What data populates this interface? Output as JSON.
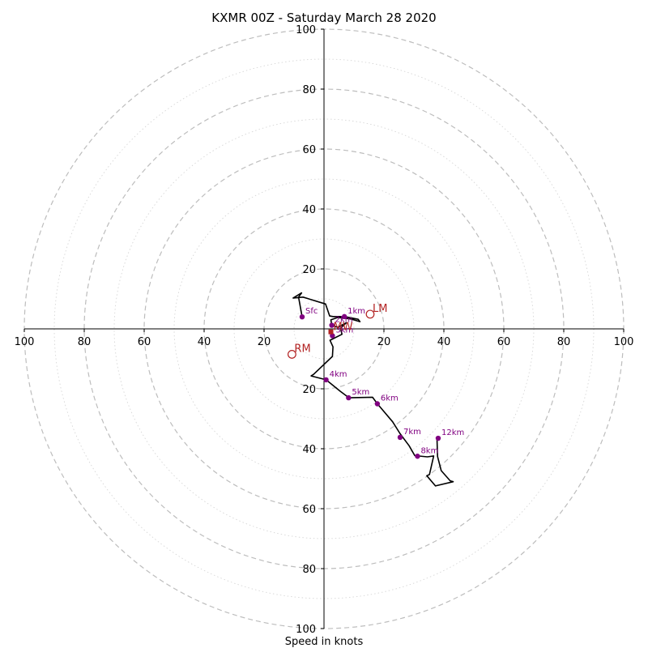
{
  "chart_data": {
    "type": "hodograph",
    "title": "KXMR 00Z - Saturday March 28 2020",
    "xlabel": "Speed in knots",
    "range": 100,
    "ring_step_major": 20,
    "ring_step_minor": 10,
    "x_ticks": [
      {
        "value": -100,
        "label": "100"
      },
      {
        "value": -80,
        "label": "80"
      },
      {
        "value": -60,
        "label": "60"
      },
      {
        "value": -40,
        "label": "40"
      },
      {
        "value": -20,
        "label": "20"
      },
      {
        "value": 20,
        "label": "20"
      },
      {
        "value": 40,
        "label": "40"
      },
      {
        "value": 60,
        "label": "60"
      },
      {
        "value": 80,
        "label": "80"
      },
      {
        "value": 100,
        "label": "100"
      }
    ],
    "y_ticks": [
      {
        "value": 100,
        "label": "100"
      },
      {
        "value": 80,
        "label": "80"
      },
      {
        "value": 60,
        "label": "60"
      },
      {
        "value": 40,
        "label": "40"
      },
      {
        "value": 20,
        "label": "20"
      },
      {
        "value": -20,
        "label": "20"
      },
      {
        "value": -40,
        "label": "40"
      },
      {
        "value": -60,
        "label": "60"
      },
      {
        "value": -80,
        "label": "80"
      },
      {
        "value": -100,
        "label": "100"
      }
    ],
    "trace_u": [
      -7.3,
      -8.5,
      -7.5,
      -10.3,
      -7.0,
      0.5,
      1.9,
      3.0,
      6.8,
      11.4,
      12.0,
      9.0,
      4.6,
      2.3,
      2.6,
      4.6,
      7.4,
      5.5,
      6.0,
      2.0,
      3.0,
      2.8,
      -3.5,
      -4.3,
      0.7,
      5.4,
      7.8,
      8.3,
      8.2,
      16.2,
      17.8,
      22.9,
      25.4,
      28.4,
      30.3,
      34.5,
      36.6,
      35.2,
      34.3,
      37.2,
      43.1,
      42.1,
      39.1,
      37.9,
      37.7
    ],
    "trace_v": [
      4.0,
      10.6,
      12.0,
      10.3,
      10.6,
      8.3,
      4.3,
      4.1,
      4.1,
      3.2,
      2.4,
      3.3,
      3.8,
      3.0,
      1.2,
      0.5,
      2.0,
      0.2,
      -1.8,
      -3.8,
      -6.0,
      -9.2,
      -15.2,
      -15.7,
      -17.0,
      -20.8,
      -22.6,
      -23.3,
      -23.0,
      -22.8,
      -25.0,
      -31.0,
      -35.0,
      -39.0,
      -42.3,
      -42.7,
      -42.4,
      -48.6,
      -49.0,
      -52.4,
      -51.0,
      -50.7,
      -47.3,
      -42.6,
      -36.7
    ],
    "height_markers": [
      {
        "u": -7.3,
        "v": 4.0,
        "label": "Sfc"
      },
      {
        "u": 6.8,
        "v": 4.1,
        "label": "1km"
      },
      {
        "u": 2.6,
        "v": 1.2,
        "label": "2km"
      },
      {
        "u": 2.8,
        "v": -2.3,
        "label": "3km"
      },
      {
        "u": 0.7,
        "v": -17.0,
        "label": "4km"
      },
      {
        "u": 8.2,
        "v": -23.0,
        "label": "5km"
      },
      {
        "u": 17.8,
        "v": -25.0,
        "label": "6km"
      },
      {
        "u": 25.4,
        "v": -36.2,
        "label": "7km"
      },
      {
        "u": 31.2,
        "v": -42.5,
        "label": "8km"
      },
      {
        "u": 38.1,
        "v": -36.5,
        "label": "12km"
      }
    ],
    "storm_markers": [
      {
        "u": 15.4,
        "v": 4.9,
        "label": "LM"
      },
      {
        "u": -10.7,
        "v": -8.5,
        "label": "RM"
      }
    ],
    "mean_wind": {
      "u": 2.3,
      "v": -1.0,
      "label": "MW"
    },
    "colors": {
      "trace": "#000000",
      "height": "#800080",
      "storm": "#b22222",
      "ring": "#bbbbbb",
      "axis": "#000000",
      "text": "#000000"
    }
  }
}
